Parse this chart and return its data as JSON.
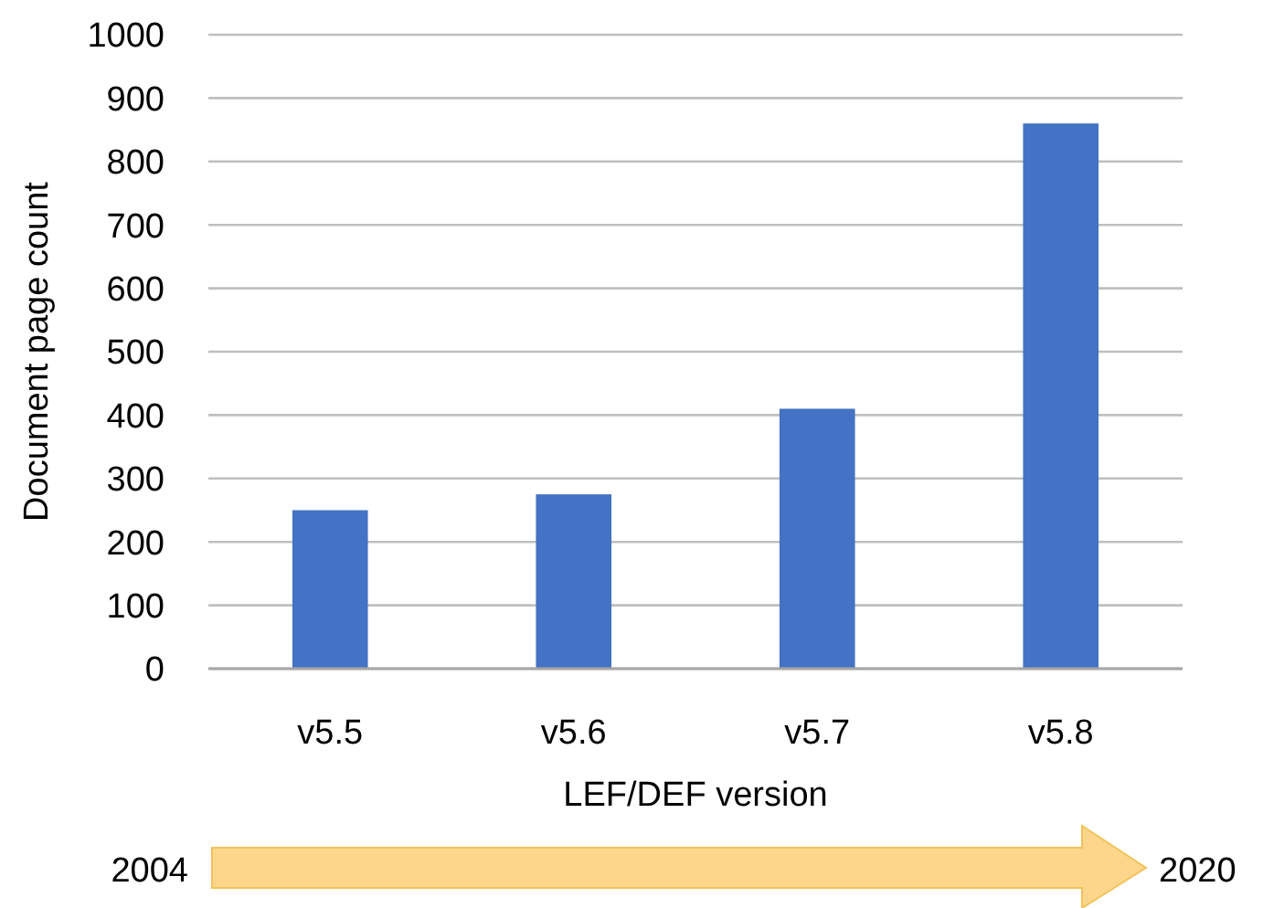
{
  "chart_data": {
    "type": "bar",
    "xlabel": "LEF/DEF version",
    "ylabel": "Document page count",
    "categories": [
      "v5.5",
      "v5.6",
      "v5.7",
      "v5.8"
    ],
    "values": [
      250,
      275,
      410,
      860
    ],
    "color": "#4472c4",
    "ylim": [
      0,
      1000
    ],
    "yticks": [
      0,
      100,
      200,
      300,
      400,
      500,
      600,
      700,
      800,
      900,
      1000
    ],
    "grid": "y",
    "annotations": [
      "2004",
      "2020"
    ]
  }
}
